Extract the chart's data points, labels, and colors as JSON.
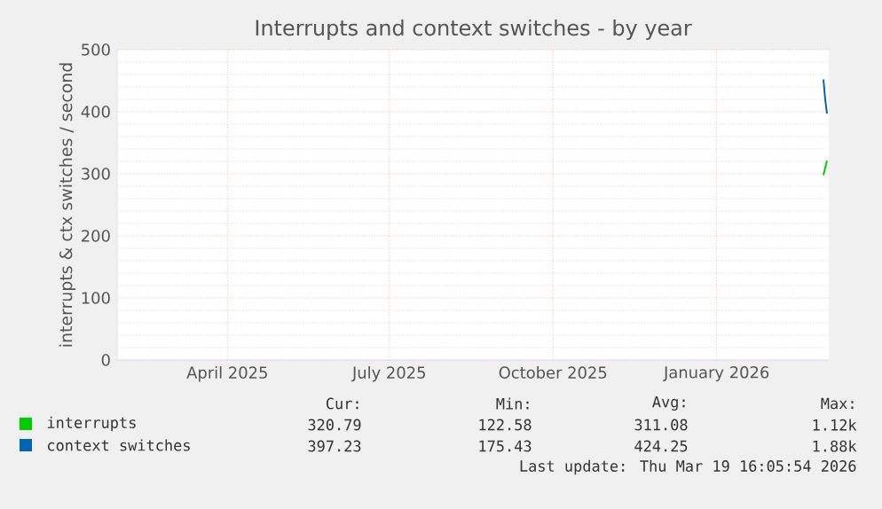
{
  "chart_data": {
    "type": "line",
    "title": "Interrupts and context switches - by year",
    "ylabel": "interrupts & ctx switches / second",
    "xlim": [
      "2025-02-12",
      "2026-03-19"
    ],
    "xticks": [
      {
        "value": "2025-04-15",
        "label": "April 2025"
      },
      {
        "value": "2025-07-15",
        "label": "July 2025"
      },
      {
        "value": "2025-10-15",
        "label": "October 2025"
      },
      {
        "value": "2026-01-15",
        "label": "January 2026"
      }
    ],
    "ylim": [
      0,
      500
    ],
    "yticks": [
      0,
      100,
      200,
      300,
      400,
      500
    ],
    "grid": true,
    "legend": "bottom",
    "series": [
      {
        "name": "interrupts",
        "color": "#00cc00",
        "x": [
          "2026-03-16",
          "2026-03-18"
        ],
        "values": [
          298,
          321
        ]
      },
      {
        "name": "context switches",
        "color": "#0066b3",
        "x": [
          "2026-03-16",
          "2026-03-17",
          "2026-03-18"
        ],
        "values": [
          452,
          420,
          397
        ]
      }
    ],
    "annotations": [
      "Cur:",
      "Min:",
      "Avg:",
      "Max:",
      "320.79",
      "122.58",
      "311.08",
      "1.12k",
      "397.23",
      "175.43",
      "424.25",
      "1.88k",
      "Last update: Thu Mar 19 16:05:54 2026"
    ]
  }
}
